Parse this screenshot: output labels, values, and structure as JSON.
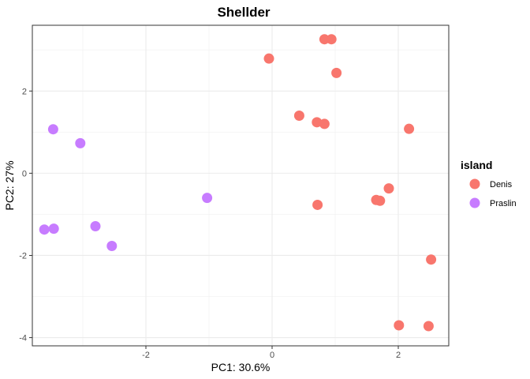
{
  "chart_data": {
    "type": "scatter",
    "title": "Shellder",
    "xlabel": "PC1: 30.6%",
    "ylabel": "PC2: 27%",
    "xlim": [
      -3.8,
      2.8
    ],
    "ylim": [
      -4.2,
      3.6
    ],
    "x_ticks": [
      -2,
      0,
      2
    ],
    "y_ticks": [
      -4,
      -2,
      0,
      2
    ],
    "x_tick_labels": [
      "-2",
      "0",
      "2"
    ],
    "y_tick_labels": [
      "-4",
      "-2",
      "0",
      "2"
    ],
    "grid": true,
    "legend": {
      "title": "island",
      "position": "right"
    },
    "series": [
      {
        "name": "Denis",
        "color": "#F8766D",
        "points": [
          {
            "x": 0.83,
            "y": 3.26
          },
          {
            "x": 0.94,
            "y": 3.26
          },
          {
            "x": -0.05,
            "y": 2.79
          },
          {
            "x": 1.02,
            "y": 2.44
          },
          {
            "x": 0.43,
            "y": 1.4
          },
          {
            "x": 0.71,
            "y": 1.24
          },
          {
            "x": 0.83,
            "y": 1.2
          },
          {
            "x": 2.17,
            "y": 1.08
          },
          {
            "x": 1.85,
            "y": -0.37
          },
          {
            "x": 1.65,
            "y": -0.65
          },
          {
            "x": 1.71,
            "y": -0.67
          },
          {
            "x": 0.72,
            "y": -0.77
          },
          {
            "x": 2.52,
            "y": -2.1
          },
          {
            "x": 2.01,
            "y": -3.7
          },
          {
            "x": 2.48,
            "y": -3.72
          }
        ]
      },
      {
        "name": "Praslin",
        "color": "#C77CFF",
        "points": [
          {
            "x": -3.47,
            "y": 1.07
          },
          {
            "x": -3.04,
            "y": 0.73
          },
          {
            "x": -1.03,
            "y": -0.6
          },
          {
            "x": -2.8,
            "y": -1.29
          },
          {
            "x": -3.46,
            "y": -1.35
          },
          {
            "x": -3.61,
            "y": -1.37
          },
          {
            "x": -2.54,
            "y": -1.77
          }
        ]
      }
    ]
  }
}
